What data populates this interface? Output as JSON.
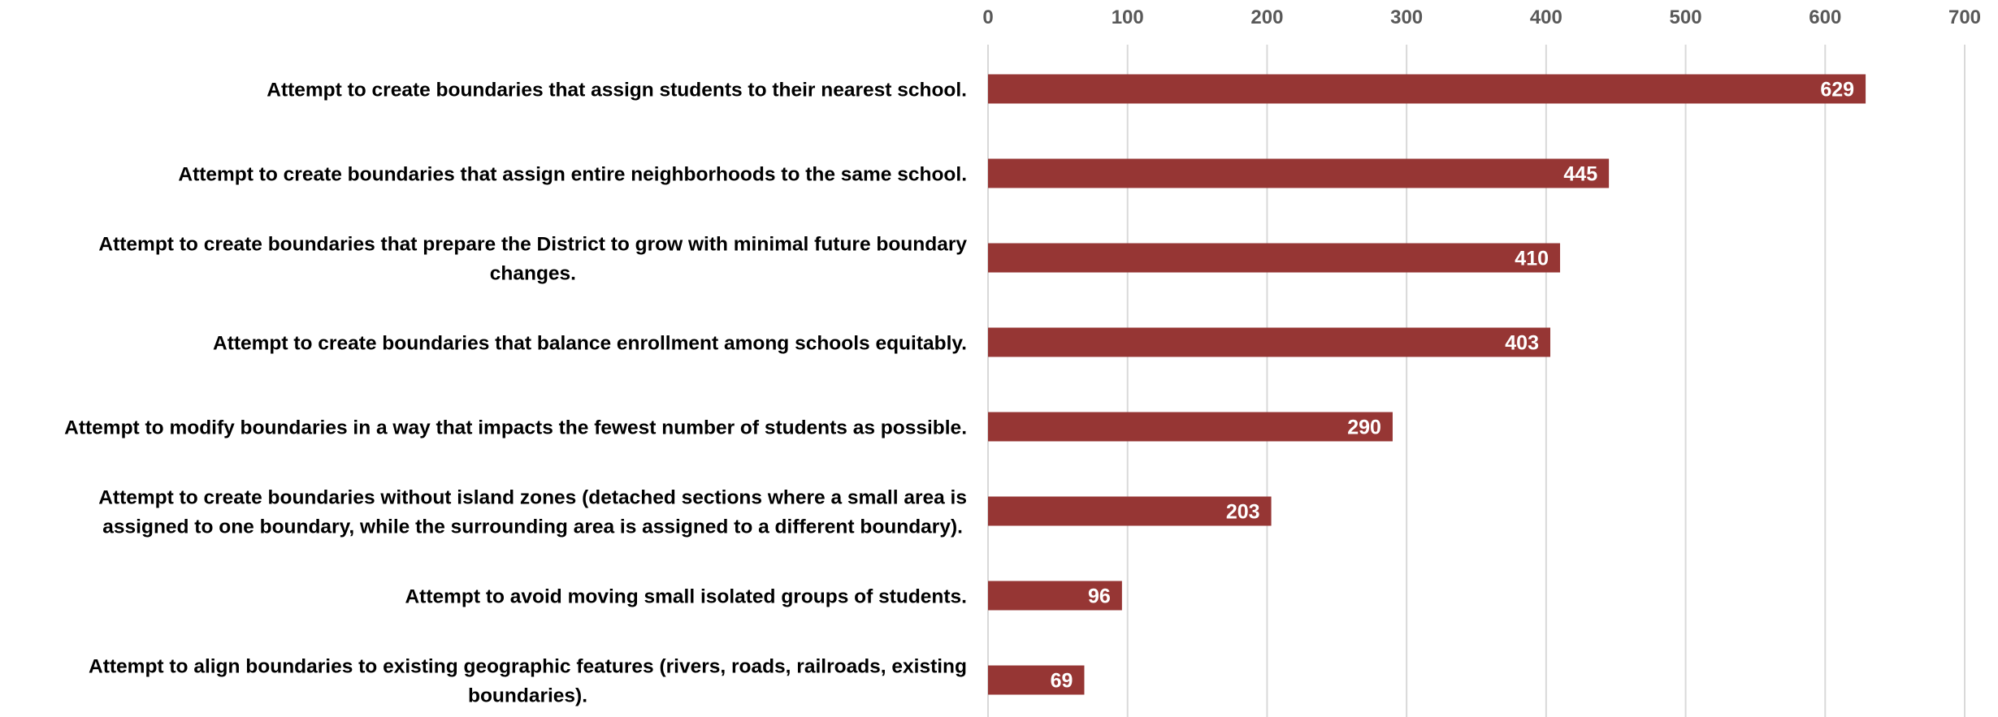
{
  "chart_data": {
    "type": "bar",
    "orientation": "horizontal",
    "categories": [
      [
        "Attempt to create boundaries that assign students to their nearest school."
      ],
      [
        "Attempt to create boundaries that assign entire neighborhoods to the same school."
      ],
      [
        "Attempt to create boundaries that prepare the District to grow with minimal future boundary",
        "changes."
      ],
      [
        "Attempt to create boundaries that balance enrollment among schools equitably."
      ],
      [
        "Attempt to modify boundaries in a way that impacts the fewest number of students as possible."
      ],
      [
        "Attempt to create boundaries without island zones (detached sections where a small area is",
        "assigned to one boundary, while the surrounding area is assigned to a different boundary)."
      ],
      [
        "Attempt to avoid moving small isolated groups of students."
      ],
      [
        "Attempt to align boundaries to existing geographic features (rivers, roads, railroads, existing",
        "boundaries)."
      ]
    ],
    "values": [
      629,
      445,
      410,
      403,
      290,
      203,
      96,
      69
    ],
    "data_labels": [
      "629",
      "445",
      "410",
      "403",
      "290",
      "203",
      "96",
      "69"
    ],
    "xlim": [
      0,
      700
    ],
    "xticks": [
      "0",
      "100",
      "200",
      "300",
      "400",
      "500",
      "600",
      "700"
    ],
    "x_axis_position": "top",
    "grid": true,
    "legend": "none",
    "bar_color": "#963634",
    "grid_color": "#d9d9d9",
    "tick_color": "#595959",
    "label_color": "#000000",
    "data_label_color": "#ffffff"
  }
}
